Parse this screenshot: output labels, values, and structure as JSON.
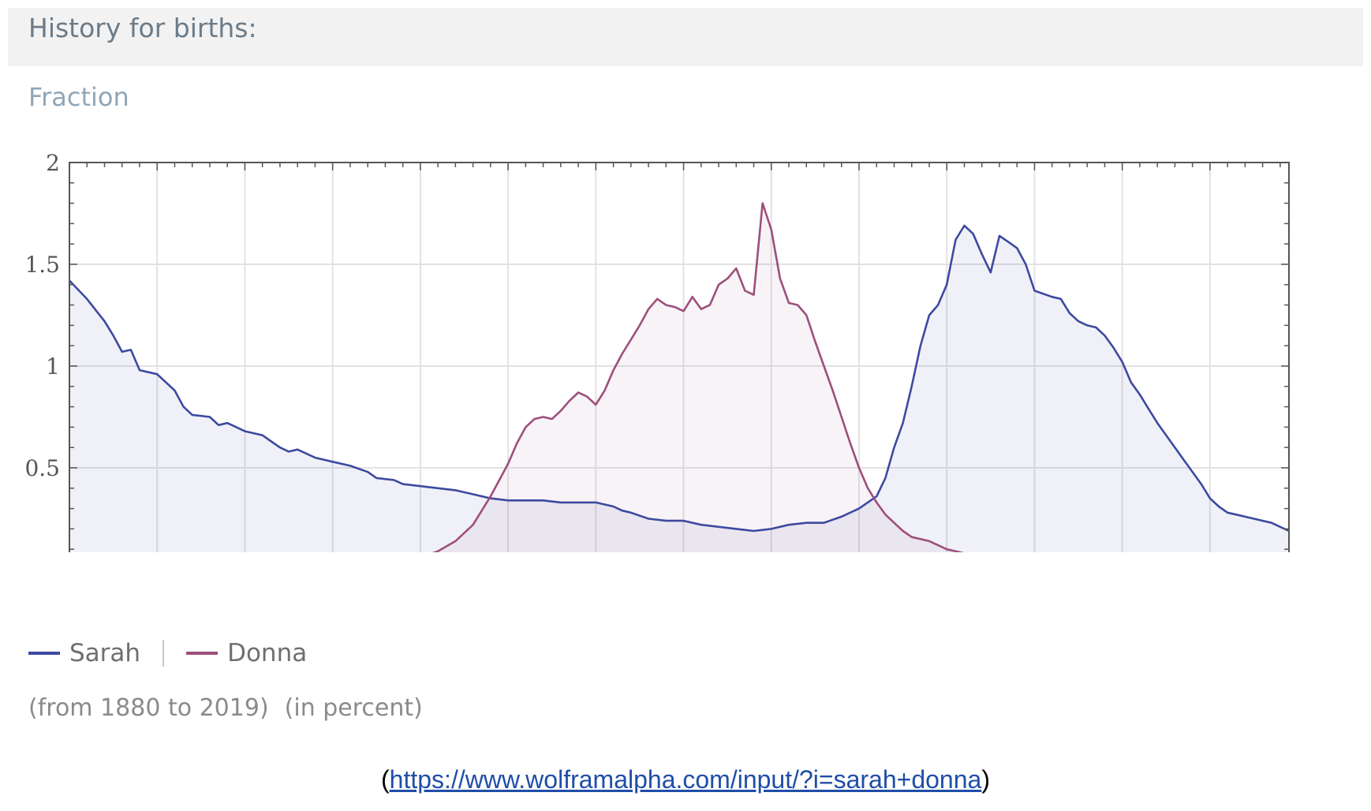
{
  "header": {
    "title": "History for births:"
  },
  "subtitle": "Fraction",
  "legend": {
    "items": [
      {
        "label": "Sarah",
        "color": "#3d4aa0"
      },
      {
        "label": "Donna",
        "color": "#9e4f7c"
      }
    ]
  },
  "note": {
    "range": "(from 1880 to 2019)",
    "unit": "(in percent)"
  },
  "source": {
    "prefix": "(",
    "link": "https://www.wolframalpha.com/input/?i=sarah+donna",
    "suffix": ")"
  },
  "chart_data": {
    "type": "area",
    "xlim": [
      1880,
      2019
    ],
    "ylim": [
      0,
      2
    ],
    "x_ticks": [
      "1880",
      "1890",
      "1900",
      "1910",
      "1920",
      "1930",
      "1940",
      "1950",
      "1960",
      "1970",
      "1980",
      "1990",
      "2000",
      "2010"
    ],
    "y_ticks": [
      "0",
      "0.5",
      "1",
      "1.5",
      "2"
    ],
    "grid": true,
    "legend_position": "bottom-left",
    "series": [
      {
        "name": "Sarah",
        "color": "#3d4aa0",
        "points": [
          [
            1880,
            1.42
          ],
          [
            1882,
            1.33
          ],
          [
            1884,
            1.22
          ],
          [
            1885,
            1.15
          ],
          [
            1886,
            1.07
          ],
          [
            1887,
            1.08
          ],
          [
            1888,
            0.98
          ],
          [
            1890,
            0.96
          ],
          [
            1892,
            0.88
          ],
          [
            1893,
            0.8
          ],
          [
            1894,
            0.76
          ],
          [
            1896,
            0.75
          ],
          [
            1897,
            0.71
          ],
          [
            1898,
            0.72
          ],
          [
            1900,
            0.68
          ],
          [
            1902,
            0.66
          ],
          [
            1903,
            0.63
          ],
          [
            1904,
            0.6
          ],
          [
            1905,
            0.58
          ],
          [
            1906,
            0.59
          ],
          [
            1908,
            0.55
          ],
          [
            1910,
            0.53
          ],
          [
            1912,
            0.51
          ],
          [
            1914,
            0.48
          ],
          [
            1915,
            0.45
          ],
          [
            1917,
            0.44
          ],
          [
            1918,
            0.42
          ],
          [
            1920,
            0.41
          ],
          [
            1922,
            0.4
          ],
          [
            1924,
            0.39
          ],
          [
            1926,
            0.37
          ],
          [
            1928,
            0.35
          ],
          [
            1930,
            0.34
          ],
          [
            1932,
            0.34
          ],
          [
            1934,
            0.34
          ],
          [
            1936,
            0.33
          ],
          [
            1940,
            0.33
          ],
          [
            1942,
            0.31
          ],
          [
            1943,
            0.29
          ],
          [
            1944,
            0.28
          ],
          [
            1946,
            0.25
          ],
          [
            1948,
            0.24
          ],
          [
            1950,
            0.24
          ],
          [
            1952,
            0.22
          ],
          [
            1954,
            0.21
          ],
          [
            1956,
            0.2
          ],
          [
            1958,
            0.19
          ],
          [
            1960,
            0.2
          ],
          [
            1962,
            0.22
          ],
          [
            1964,
            0.23
          ],
          [
            1966,
            0.23
          ],
          [
            1968,
            0.26
          ],
          [
            1970,
            0.3
          ],
          [
            1972,
            0.36
          ],
          [
            1973,
            0.45
          ],
          [
            1974,
            0.6
          ],
          [
            1975,
            0.72
          ],
          [
            1976,
            0.9
          ],
          [
            1977,
            1.1
          ],
          [
            1978,
            1.25
          ],
          [
            1979,
            1.3
          ],
          [
            1980,
            1.4
          ],
          [
            1981,
            1.62
          ],
          [
            1982,
            1.69
          ],
          [
            1983,
            1.65
          ],
          [
            1984,
            1.55
          ],
          [
            1985,
            1.46
          ],
          [
            1986,
            1.64
          ],
          [
            1987,
            1.61
          ],
          [
            1988,
            1.58
          ],
          [
            1989,
            1.5
          ],
          [
            1990,
            1.37
          ],
          [
            1992,
            1.34
          ],
          [
            1993,
            1.33
          ],
          [
            1994,
            1.26
          ],
          [
            1995,
            1.22
          ],
          [
            1996,
            1.2
          ],
          [
            1997,
            1.19
          ],
          [
            1998,
            1.15
          ],
          [
            1999,
            1.09
          ],
          [
            2000,
            1.02
          ],
          [
            2001,
            0.92
          ],
          [
            2002,
            0.86
          ],
          [
            2003,
            0.79
          ],
          [
            2004,
            0.72
          ],
          [
            2005,
            0.66
          ],
          [
            2006,
            0.6
          ],
          [
            2007,
            0.54
          ],
          [
            2008,
            0.48
          ],
          [
            2009,
            0.42
          ],
          [
            2010,
            0.35
          ],
          [
            2011,
            0.31
          ],
          [
            2012,
            0.28
          ],
          [
            2013,
            0.27
          ],
          [
            2015,
            0.25
          ],
          [
            2017,
            0.23
          ],
          [
            2019,
            0.19
          ]
        ]
      },
      {
        "name": "Donna",
        "color": "#9e4f7c",
        "points": [
          [
            1880,
            0.01
          ],
          [
            1890,
            0.01
          ],
          [
            1900,
            0.01
          ],
          [
            1905,
            0.02
          ],
          [
            1910,
            0.02
          ],
          [
            1912,
            0.03
          ],
          [
            1914,
            0.04
          ],
          [
            1916,
            0.04
          ],
          [
            1918,
            0.05
          ],
          [
            1920,
            0.06
          ],
          [
            1922,
            0.09
          ],
          [
            1924,
            0.14
          ],
          [
            1926,
            0.22
          ],
          [
            1928,
            0.36
          ],
          [
            1930,
            0.52
          ],
          [
            1931,
            0.62
          ],
          [
            1932,
            0.7
          ],
          [
            1933,
            0.74
          ],
          [
            1934,
            0.75
          ],
          [
            1935,
            0.74
          ],
          [
            1936,
            0.78
          ],
          [
            1937,
            0.83
          ],
          [
            1938,
            0.87
          ],
          [
            1939,
            0.85
          ],
          [
            1940,
            0.81
          ],
          [
            1941,
            0.88
          ],
          [
            1942,
            0.98
          ],
          [
            1943,
            1.06
          ],
          [
            1944,
            1.13
          ],
          [
            1945,
            1.2
          ],
          [
            1946,
            1.28
          ],
          [
            1947,
            1.33
          ],
          [
            1948,
            1.3
          ],
          [
            1949,
            1.29
          ],
          [
            1950,
            1.27
          ],
          [
            1951,
            1.34
          ],
          [
            1952,
            1.28
          ],
          [
            1953,
            1.3
          ],
          [
            1954,
            1.4
          ],
          [
            1955,
            1.43
          ],
          [
            1956,
            1.48
          ],
          [
            1957,
            1.37
          ],
          [
            1958,
            1.35
          ],
          [
            1959,
            1.8
          ],
          [
            1960,
            1.67
          ],
          [
            1961,
            1.43
          ],
          [
            1962,
            1.31
          ],
          [
            1963,
            1.3
          ],
          [
            1964,
            1.25
          ],
          [
            1965,
            1.12
          ],
          [
            1966,
            1.0
          ],
          [
            1967,
            0.88
          ],
          [
            1968,
            0.75
          ],
          [
            1969,
            0.62
          ],
          [
            1970,
            0.5
          ],
          [
            1971,
            0.4
          ],
          [
            1972,
            0.33
          ],
          [
            1973,
            0.27
          ],
          [
            1974,
            0.23
          ],
          [
            1975,
            0.19
          ],
          [
            1976,
            0.16
          ],
          [
            1978,
            0.14
          ],
          [
            1980,
            0.1
          ],
          [
            1982,
            0.08
          ],
          [
            1984,
            0.06
          ],
          [
            1986,
            0.05
          ],
          [
            1988,
            0.05
          ],
          [
            1990,
            0.04
          ],
          [
            1992,
            0.03
          ],
          [
            1995,
            0.02
          ],
          [
            2000,
            0.02
          ],
          [
            2005,
            0.02
          ],
          [
            2010,
            0.01
          ],
          [
            2015,
            0.01
          ],
          [
            2019,
            0.0
          ]
        ]
      }
    ]
  }
}
